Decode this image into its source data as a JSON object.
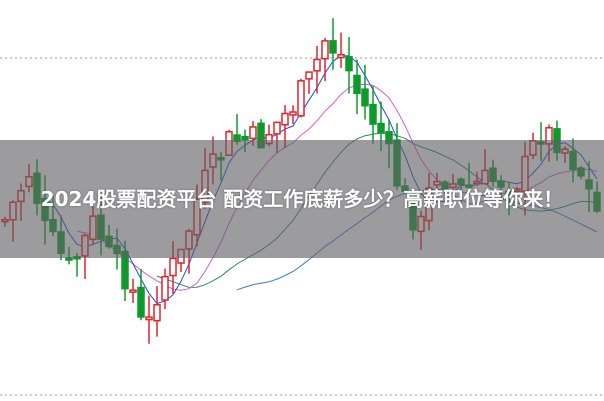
{
  "headline": "2024股票配资平台 配资工作底薪多少？高薪职位等你来！",
  "colors": {
    "up_candle": "#e0242a",
    "down_candle": "#0e9a2a",
    "ma_short": "#1a4fd8",
    "ma_mid": "#d45cd8",
    "ma_long": "#2e8b57",
    "ma_longest": "#3a7bd5",
    "banner": "#5f5f64"
  }
}
